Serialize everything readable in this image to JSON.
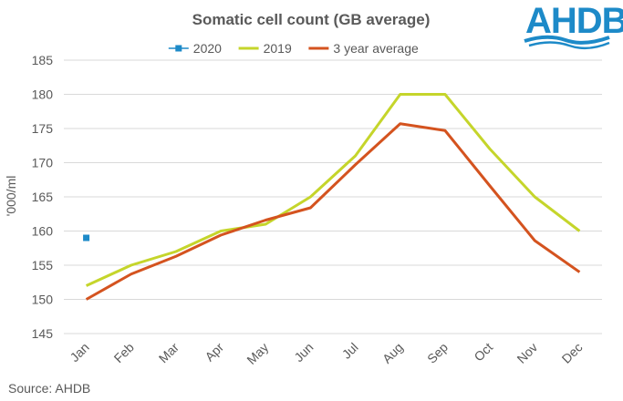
{
  "logo": {
    "text": "AHDB",
    "color": "#1d8ac8"
  },
  "source_note": "Source: AHDB",
  "chart_data": {
    "type": "line",
    "title": "Somatic cell count (GB average)",
    "ylabel": "'000/ml",
    "xlabel": "",
    "categories": [
      "Jan",
      "Feb",
      "Mar",
      "Apr",
      "May",
      "Jun",
      "Jul",
      "Aug",
      "Sep",
      "Oct",
      "Nov",
      "Dec"
    ],
    "ylim": [
      145,
      185
    ],
    "yticks": [
      145,
      150,
      155,
      160,
      165,
      170,
      175,
      180,
      185
    ],
    "grid": true,
    "legend_position": "top",
    "series": [
      {
        "name": "2020",
        "color": "#1d8ac8",
        "style": "marker",
        "values": [
          159,
          null,
          null,
          null,
          null,
          null,
          null,
          null,
          null,
          null,
          null,
          null
        ]
      },
      {
        "name": "2019",
        "color": "#c5d52b",
        "style": "line",
        "values": [
          152,
          155,
          157,
          160,
          161,
          165,
          171,
          180,
          180,
          172,
          165,
          160
        ]
      },
      {
        "name": "3 year average",
        "color": "#d4531f",
        "style": "line",
        "values": [
          150,
          153.7,
          156.3,
          159.4,
          161.6,
          163.4,
          169.7,
          175.7,
          174.7,
          166.6,
          158.6,
          154
        ]
      }
    ]
  }
}
